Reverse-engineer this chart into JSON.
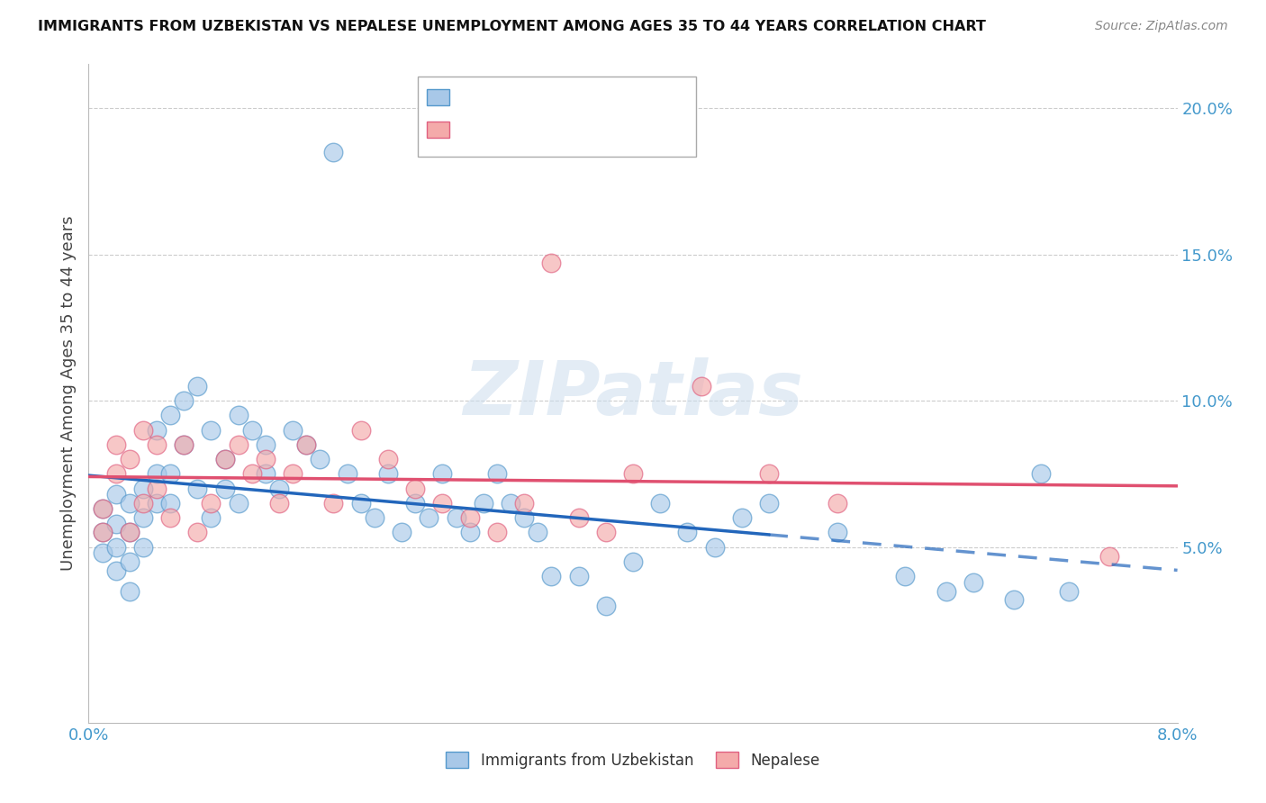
{
  "title": "IMMIGRANTS FROM UZBEKISTAN VS NEPALESE UNEMPLOYMENT AMONG AGES 35 TO 44 YEARS CORRELATION CHART",
  "source": "Source: ZipAtlas.com",
  "ylabel": "Unemployment Among Ages 35 to 44 years",
  "legend1_label": "Immigrants from Uzbekistan",
  "legend2_label": "Nepalese",
  "color_blue": "#a8c8e8",
  "color_pink": "#f4aaaa",
  "color_blue_edge": "#5599cc",
  "color_pink_edge": "#e06080",
  "color_blue_line": "#2266bb",
  "color_pink_line": "#e05070",
  "xmin": 0.0,
  "xmax": 0.08,
  "ymin": -0.01,
  "ymax": 0.215,
  "background_color": "#ffffff",
  "grid_color": "#cccccc",
  "blue_x": [
    0.001,
    0.001,
    0.001,
    0.002,
    0.002,
    0.002,
    0.002,
    0.003,
    0.003,
    0.003,
    0.003,
    0.004,
    0.004,
    0.004,
    0.005,
    0.005,
    0.005,
    0.006,
    0.006,
    0.006,
    0.007,
    0.007,
    0.008,
    0.008,
    0.009,
    0.009,
    0.01,
    0.01,
    0.011,
    0.011,
    0.012,
    0.013,
    0.013,
    0.014,
    0.015,
    0.016,
    0.017,
    0.018,
    0.019,
    0.02,
    0.021,
    0.022,
    0.023,
    0.024,
    0.025,
    0.026,
    0.027,
    0.028,
    0.029,
    0.03,
    0.031,
    0.032,
    0.033,
    0.034,
    0.036,
    0.038,
    0.04,
    0.042,
    0.044,
    0.046,
    0.048,
    0.05,
    0.055,
    0.06,
    0.063,
    0.065,
    0.068,
    0.07,
    0.072
  ],
  "blue_y": [
    0.063,
    0.055,
    0.048,
    0.068,
    0.058,
    0.05,
    0.042,
    0.065,
    0.055,
    0.045,
    0.035,
    0.07,
    0.06,
    0.05,
    0.09,
    0.075,
    0.065,
    0.095,
    0.075,
    0.065,
    0.1,
    0.085,
    0.105,
    0.07,
    0.09,
    0.06,
    0.08,
    0.07,
    0.095,
    0.065,
    0.09,
    0.085,
    0.075,
    0.07,
    0.09,
    0.085,
    0.08,
    0.185,
    0.075,
    0.065,
    0.06,
    0.075,
    0.055,
    0.065,
    0.06,
    0.075,
    0.06,
    0.055,
    0.065,
    0.075,
    0.065,
    0.06,
    0.055,
    0.04,
    0.04,
    0.03,
    0.045,
    0.065,
    0.055,
    0.05,
    0.06,
    0.065,
    0.055,
    0.04,
    0.035,
    0.038,
    0.032,
    0.075,
    0.035
  ],
  "pink_x": [
    0.001,
    0.001,
    0.002,
    0.002,
    0.003,
    0.003,
    0.004,
    0.004,
    0.005,
    0.005,
    0.006,
    0.007,
    0.008,
    0.009,
    0.01,
    0.011,
    0.012,
    0.013,
    0.014,
    0.015,
    0.016,
    0.018,
    0.02,
    0.022,
    0.024,
    0.026,
    0.028,
    0.03,
    0.032,
    0.034,
    0.036,
    0.038,
    0.04,
    0.045,
    0.05,
    0.055,
    0.075
  ],
  "pink_y": [
    0.063,
    0.055,
    0.075,
    0.085,
    0.08,
    0.055,
    0.09,
    0.065,
    0.085,
    0.07,
    0.06,
    0.085,
    0.055,
    0.065,
    0.08,
    0.085,
    0.075,
    0.08,
    0.065,
    0.075,
    0.085,
    0.065,
    0.09,
    0.08,
    0.07,
    0.065,
    0.06,
    0.055,
    0.065,
    0.147,
    0.06,
    0.055,
    0.075,
    0.105,
    0.075,
    0.065,
    0.047
  ]
}
